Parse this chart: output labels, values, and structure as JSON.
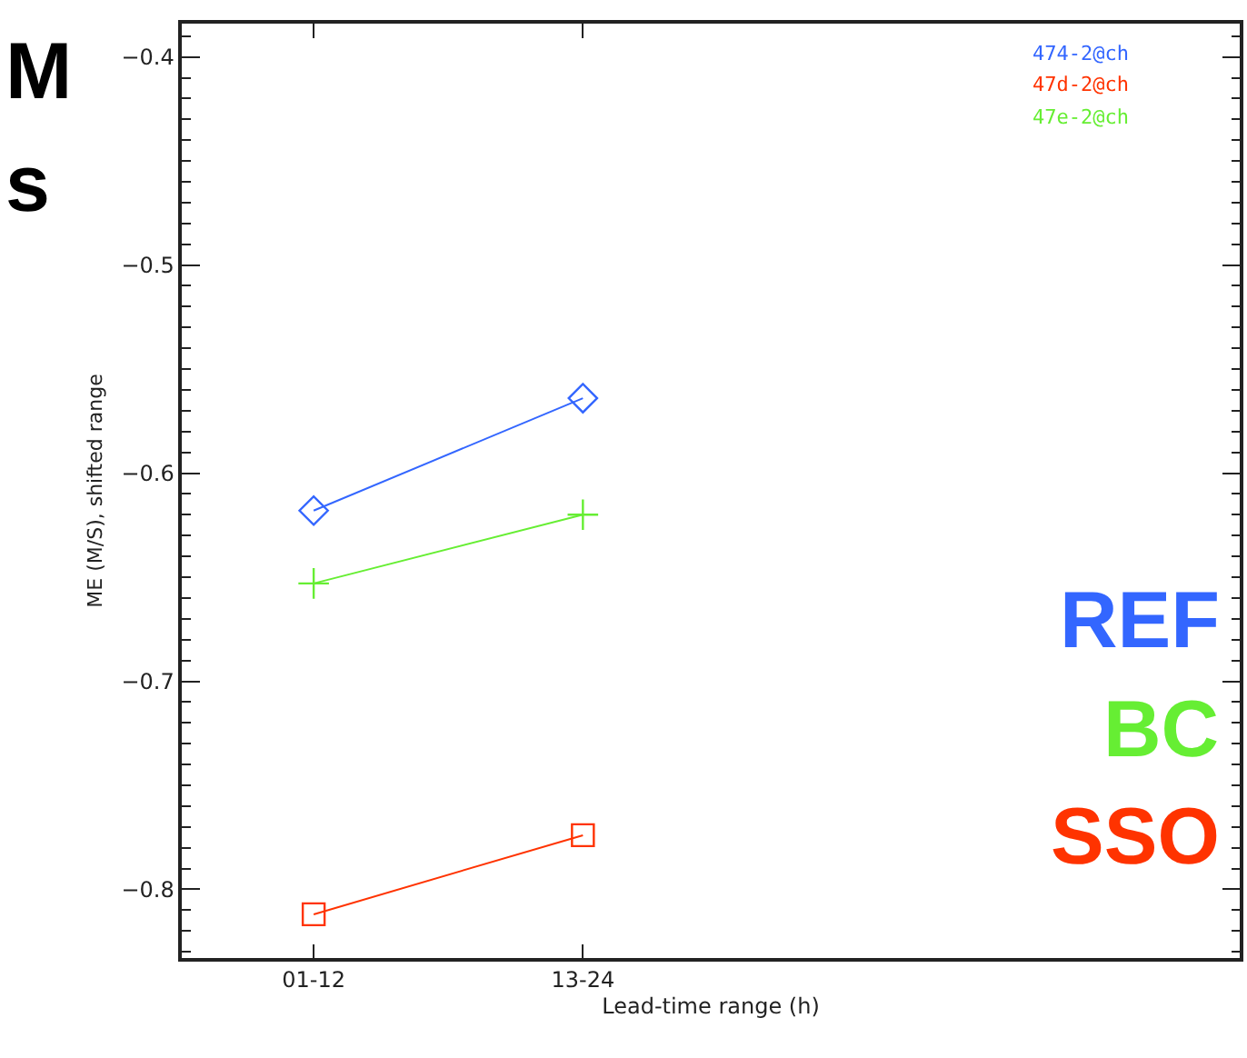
{
  "chart_data": {
    "type": "line",
    "xlabel": "Lead-time range (h)",
    "ylabel": "ME (M/S), shifted range",
    "categories": [
      "01-12",
      "13-24",
      null,
      null
    ],
    "series": [
      {
        "name": "474-2@ch",
        "color": "#3366ff",
        "marker": "diamond",
        "values": [
          -0.618,
          -0.564,
          null,
          null
        ]
      },
      {
        "name": "47d-2@ch",
        "color": "#ff3300",
        "marker": "square",
        "values": [
          -0.812,
          -0.774,
          null,
          null
        ]
      },
      {
        "name": "47e-2@ch",
        "color": "#66ee33",
        "marker": "cross",
        "values": [
          -0.653,
          -0.62,
          null,
          null
        ]
      }
    ],
    "ylim": [
      -0.833,
      -0.384
    ],
    "yticks": [
      -0.8,
      -0.7,
      -0.6,
      -0.5,
      -0.4
    ],
    "legend": "top right",
    "line_style": "solid",
    "annotations": [
      "M",
      "s",
      "REF",
      "BC",
      "SSO"
    ]
  }
}
